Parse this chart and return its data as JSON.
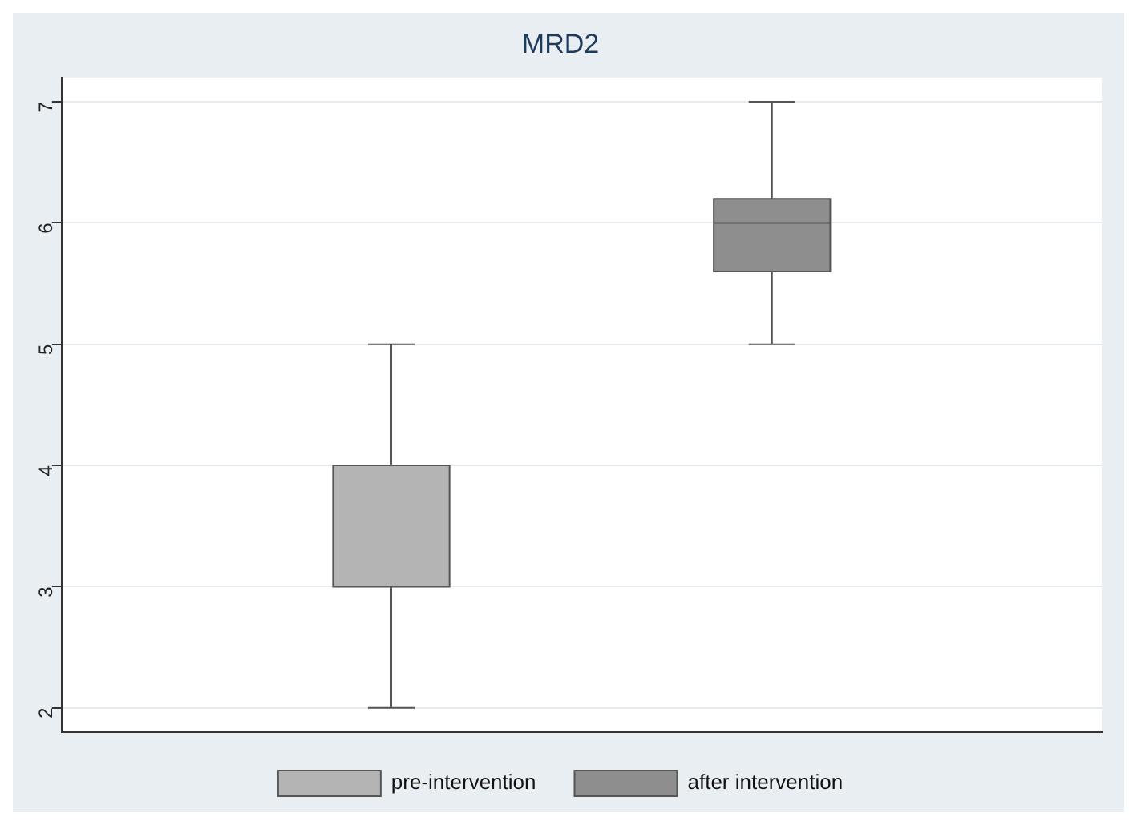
{
  "chart_data": {
    "type": "box",
    "title": "MRD2",
    "categories": [
      null
    ],
    "series": [
      {
        "name": "pre-intervention",
        "color": "#b4b4b4",
        "boxes": [
          {
            "low": 2,
            "q1": 3,
            "median": 4,
            "q3": 4,
            "high": 5
          }
        ]
      },
      {
        "name": "after intervention",
        "color": "#8e8e8e",
        "boxes": [
          {
            "low": 5,
            "q1": 5.6,
            "median": 6,
            "q3": 6.2,
            "high": 7
          }
        ]
      }
    ],
    "ylim": [
      1.8,
      7.2
    ],
    "yticks": [
      2,
      3,
      4,
      5,
      6,
      7
    ],
    "grid": "y",
    "legend": "bottom",
    "tick_labels": "y"
  }
}
